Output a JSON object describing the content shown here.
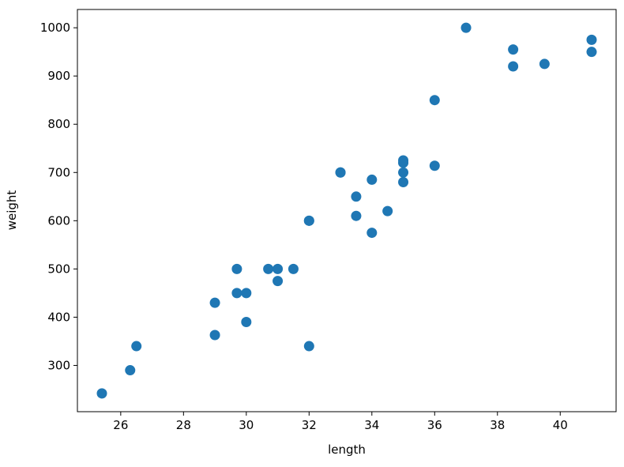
{
  "chart_data": {
    "type": "scatter",
    "x_label": "length",
    "y_label": "weight",
    "series": [
      {
        "color": "#1f77b4",
        "x": [
          25.4,
          26.3,
          26.5,
          29.0,
          29.0,
          29.7,
          29.7,
          30.0,
          30.0,
          30.7,
          31.0,
          31.0,
          31.5,
          32.0,
          32.0,
          32.0,
          33.0,
          33.0,
          33.5,
          33.5,
          34.0,
          34.0,
          34.5,
          35.0,
          35.0,
          35.0,
          35.0,
          36.0,
          36.0,
          37.0,
          38.5,
          38.5,
          39.5,
          41.0,
          41.0
        ],
        "values": [
          242,
          290,
          340,
          363,
          430,
          450,
          500,
          390,
          450,
          500,
          475,
          500,
          500,
          340,
          600,
          600,
          700,
          700,
          610,
          650,
          575,
          685,
          620,
          680,
          700,
          725,
          720,
          714,
          850,
          1000,
          920,
          955,
          925,
          975,
          950
        ]
      }
    ],
    "xlim": [
      24.62,
      41.78
    ],
    "xticks": [
      26,
      28,
      30,
      32,
      34,
      36,
      38,
      40
    ],
    "ylim": [
      204.1,
      1037.9
    ],
    "yticks": [
      300,
      400,
      500,
      600,
      700,
      800,
      900,
      1000
    ],
    "grid": false
  }
}
